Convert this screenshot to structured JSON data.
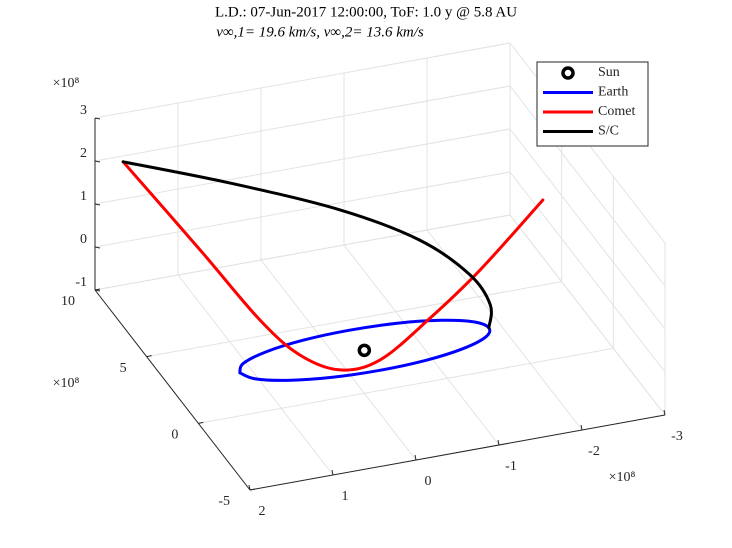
{
  "chart_data": {
    "type": "line3d",
    "title": "L.D.: 07-Jun-2017 12:00:00, ToF: 1.0 y @ 5.8 AU",
    "subtitle": "v∞,1= 19.6 km/s, v∞,2= 13.6 km/s",
    "xlim": [
      -3,
      2
    ],
    "ylim": [
      -5,
      10
    ],
    "zlim": [
      -1,
      3
    ],
    "xticks": [
      -3,
      -2,
      -1,
      0,
      1,
      2
    ],
    "yticks": [
      -5,
      0,
      5,
      10
    ],
    "zticks": [
      -1,
      0,
      1,
      2,
      3
    ],
    "x_exponent": "×10⁸",
    "y_exponent": "×10⁸",
    "z_exponent": "×10⁸",
    "grid": true,
    "legend_position": "northeast",
    "series": [
      {
        "name": "Sun",
        "color": "#000000",
        "marker": "o",
        "x": [
          0
        ],
        "y": [
          0
        ],
        "z": [
          0
        ]
      },
      {
        "name": "Earth",
        "color": "#0000ff",
        "x": [
          1.5,
          1.39,
          1.06,
          0.57,
          0,
          -0.57,
          -1.06,
          -1.39,
          -1.5,
          -1.39,
          -1.06,
          -0.57,
          0,
          0.57,
          1.06,
          1.39,
          1.5
        ],
        "y": [
          0,
          0.57,
          1.06,
          1.39,
          1.5,
          1.39,
          1.06,
          0.57,
          0,
          -0.57,
          -1.06,
          -1.39,
          -1.5,
          -1.39,
          -1.06,
          -0.57,
          0
        ],
        "z": [
          0,
          0,
          0,
          0,
          0,
          0,
          0,
          0,
          0,
          0,
          0,
          0,
          0,
          0,
          0,
          0,
          0
        ]
      },
      {
        "name": "Comet",
        "color": "#ff0000",
        "x": [
          1.91,
          1.23,
          0.76,
          0.53,
          0.23,
          -0.19,
          -0.79,
          -1.52,
          -2.4
        ],
        "y": [
          8,
          6,
          4,
          2,
          0.5,
          0,
          0,
          1,
          2
        ],
        "z": [
          2.57,
          0.9,
          -0.27,
          -0.54,
          -0.53,
          -0.29,
          0.47,
          1.03,
          2.04
        ]
      },
      {
        "name": "S/C",
        "color": "#000000",
        "x": [
          -1.5,
          -1.58,
          -1.46,
          -1.04,
          -0.33,
          0.77,
          1.91
        ],
        "y": [
          0,
          0.5,
          1.5,
          3,
          5,
          6.8,
          8
        ],
        "z": [
          0,
          0.35,
          0.78,
          1.27,
          1.6,
          2.05,
          2.57
        ]
      }
    ]
  }
}
